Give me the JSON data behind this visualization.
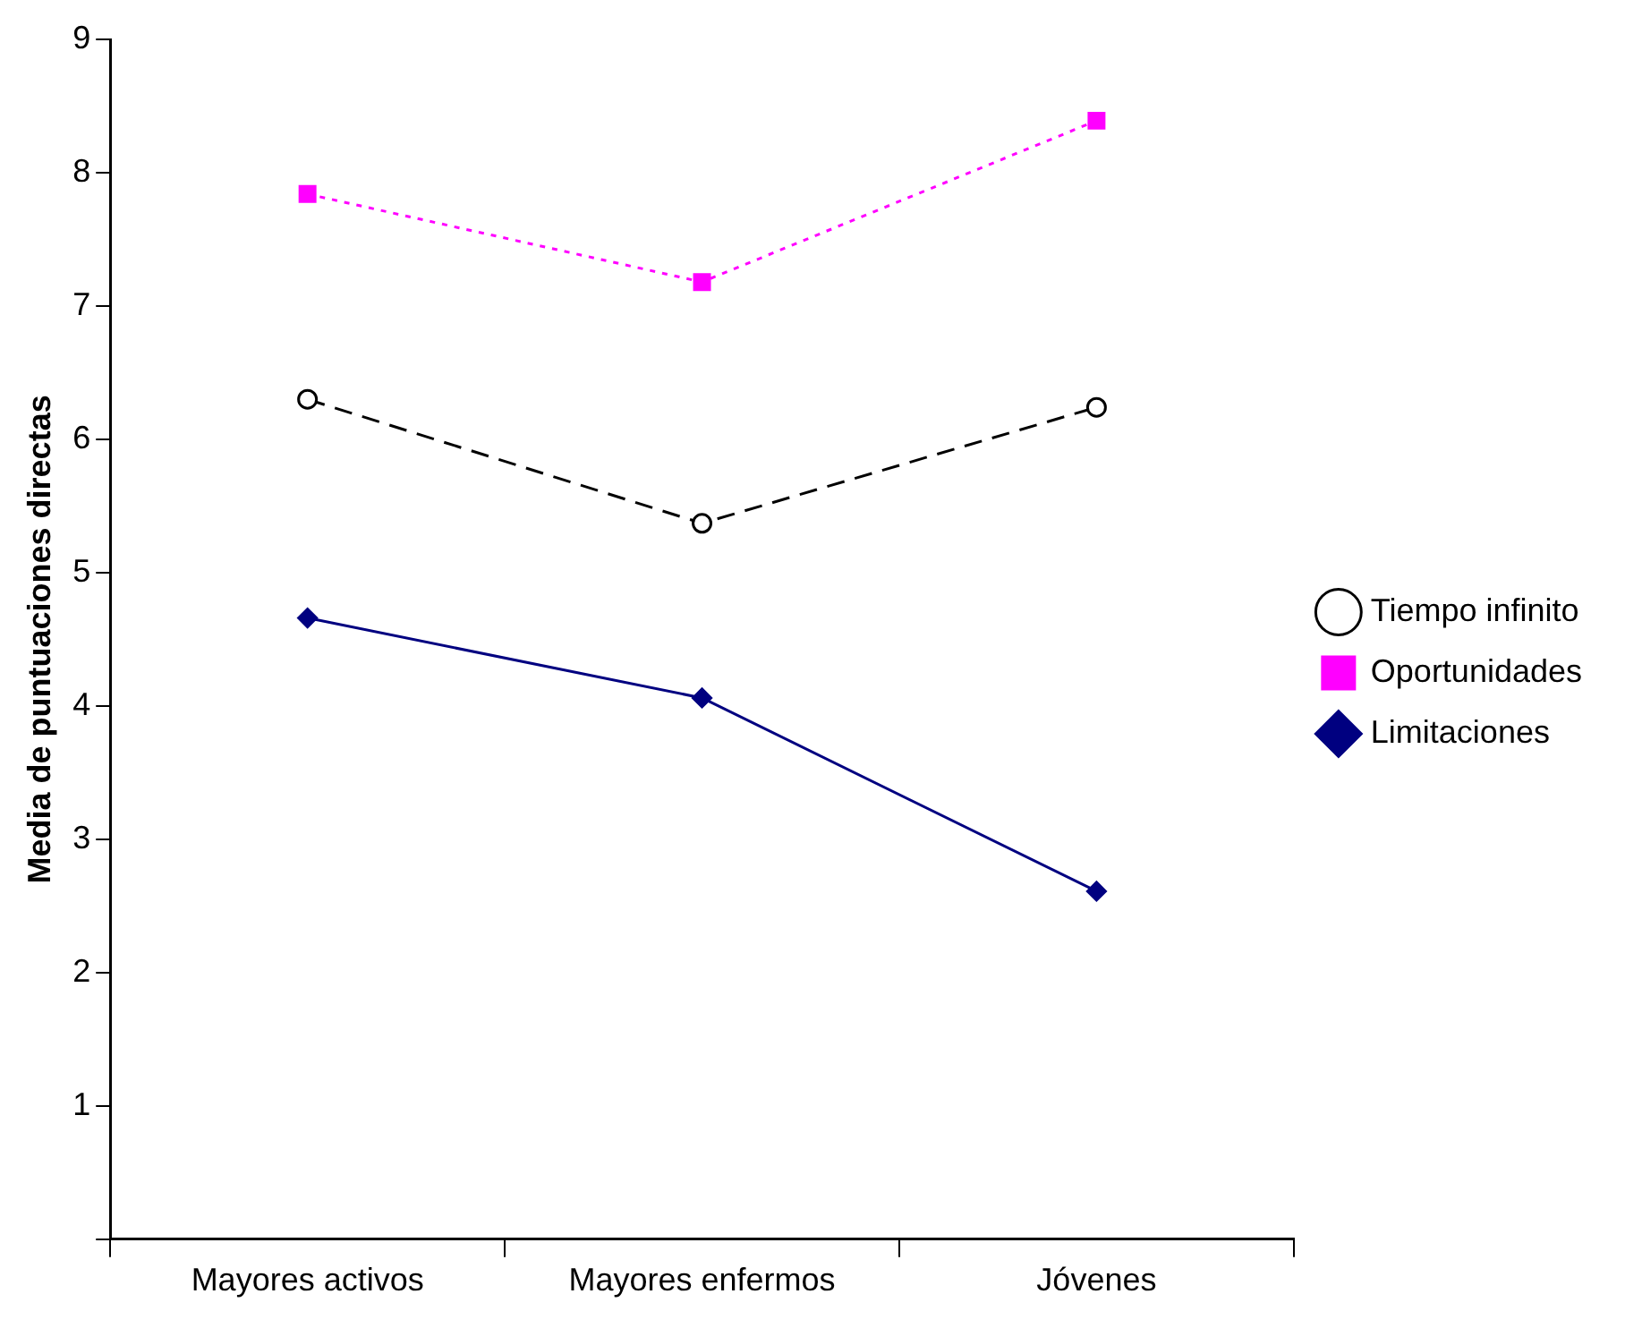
{
  "chart_data": {
    "type": "line",
    "ylabel": "Media de puntuaciones directas",
    "categories": [
      "Mayores activos",
      "Mayores enfermos",
      "Jóvenes"
    ],
    "series": [
      {
        "name": "Tiempo infinito",
        "color": "#000000",
        "values": [
          6.3,
          5.37,
          6.24
        ],
        "marker": "circle",
        "line_style": "dashed"
      },
      {
        "name": "Oportunidades",
        "color": "#ff00ff",
        "values": [
          7.84,
          7.18,
          8.39
        ],
        "marker": "square",
        "line_style": "dotted"
      },
      {
        "name": "Limitaciones",
        "color": "#000080",
        "values": [
          4.66,
          4.06,
          2.61
        ],
        "marker": "diamond",
        "line_style": "solid"
      }
    ],
    "ylim": [
      0,
      9
    ],
    "yticks": [
      {
        "value": 0,
        "label": null
      },
      1,
      2,
      3,
      4,
      5,
      6,
      7,
      8,
      9
    ],
    "grid": false,
    "legend": "right"
  }
}
